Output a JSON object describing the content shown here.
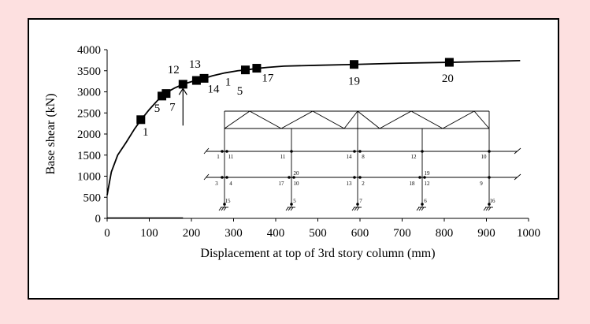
{
  "chart_data": {
    "type": "line",
    "xlabel": "Displacement at top of 3rd story column (mm)",
    "ylabel": "Base shear (kN)",
    "xlim": [
      0,
      1000
    ],
    "ylim": [
      0,
      4000
    ],
    "x_ticks": [
      0,
      100,
      200,
      300,
      400,
      500,
      600,
      700,
      800,
      900,
      1000
    ],
    "y_ticks": [
      0,
      500,
      1000,
      1500,
      2000,
      2500,
      3000,
      3500,
      4000
    ],
    "grid": false,
    "series": [
      {
        "x": [
          0,
          10,
          25,
          45,
          65,
          80,
          100,
          120,
          133,
          140,
          160,
          180,
          200,
          212,
          230,
          250,
          280,
          310,
          330,
          355,
          380,
          420,
          500,
          586,
          700,
          812,
          900,
          980
        ],
        "y": [
          550,
          1100,
          1500,
          1800,
          2120,
          2330,
          2580,
          2800,
          2920,
          2980,
          3090,
          3180,
          3240,
          3270,
          3320,
          3380,
          3450,
          3500,
          3520,
          3555,
          3580,
          3610,
          3630,
          3650,
          3680,
          3700,
          3720,
          3740
        ]
      }
    ],
    "markers": [
      {
        "x": 80,
        "y": 2340,
        "label": "1"
      },
      {
        "x": 130,
        "y": 2900,
        "label": "5"
      },
      {
        "x": 140,
        "y": 2960,
        "label": "7"
      },
      {
        "x": 180,
        "y": 3180,
        "label": "12"
      },
      {
        "x": 212,
        "y": 3270,
        "label": "13"
      },
      {
        "x": 230,
        "y": 3320,
        "label": "14"
      },
      {
        "x": 328,
        "y": 3520,
        "label": "1"
      },
      {
        "x": 355,
        "y": 3560,
        "label": "17"
      },
      {
        "x": 586,
        "y": 3650,
        "label": "19"
      },
      {
        "x": 812,
        "y": 3700,
        "label": "20"
      }
    ],
    "extra_annotation": "5",
    "arrow_at_x": 180,
    "frame_inset": {
      "node_labels": [
        "1",
        "11",
        "11",
        "14",
        "8",
        "12",
        "10",
        "3",
        "4",
        "17",
        "20",
        "10",
        "13",
        "2",
        "18",
        "19",
        "12",
        "9",
        "15",
        "5",
        "7",
        "6",
        "16"
      ]
    }
  }
}
